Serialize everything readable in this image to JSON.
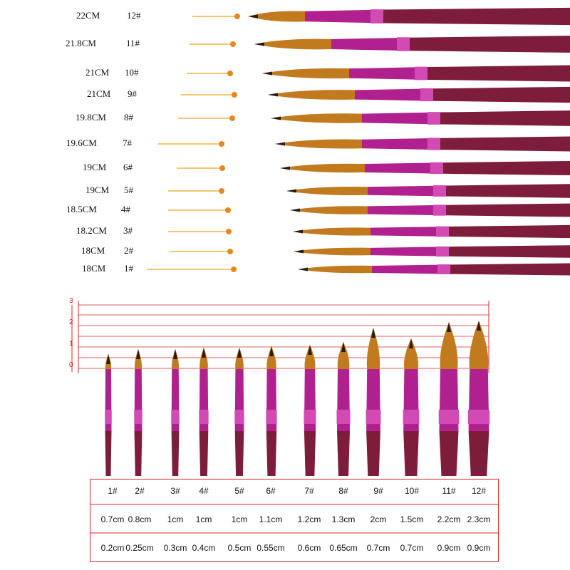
{
  "colors": {
    "leader_line": "#f2b244",
    "dot": "#e8871e",
    "ferrule": "#b0218f",
    "handle": "#7e1c3b",
    "hair": "#c27a1e",
    "hair_tip": "#2b1a10",
    "grid": "#d42a2a"
  },
  "top_rows": [
    {
      "length": "22CM",
      "size": "12#"
    },
    {
      "length": "21.8CM",
      "size": "11#"
    },
    {
      "length": "21CM",
      "size": "10#"
    },
    {
      "length": "21CM",
      "size": "9#"
    },
    {
      "length": "19.8CM",
      "size": "8#"
    },
    {
      "length": "19.6CM",
      "size": "7#"
    },
    {
      "length": "19CM",
      "size": "6#"
    },
    {
      "length": "19CM",
      "size": "5#"
    },
    {
      "length": "18.5CM",
      "size": "4#"
    },
    {
      "length": "18.2CM",
      "size": "3#"
    },
    {
      "length": "18CM",
      "size": "2#"
    },
    {
      "length": "18CM",
      "size": "1#"
    }
  ],
  "ruler_labels": [
    "3",
    "2",
    "1",
    "0"
  ],
  "table": {
    "sizes": [
      "1#",
      "2#",
      "3#",
      "4#",
      "5#",
      "6#",
      "7#",
      "8#",
      "9#",
      "10#",
      "11#",
      "12#"
    ],
    "hair_lengths": [
      "0.7cm",
      "0.8cm",
      "1cm",
      "1cm",
      "1cm",
      "1.1cm",
      "1.2cm",
      "1.3cm",
      "2cm",
      "1.5cm",
      "2.2cm",
      "2.3cm"
    ],
    "hair_widths": [
      "0.2cm",
      "0.25cm",
      "0.3cm",
      "0.4cm",
      "0.5cm",
      "0.55cm",
      "0.6cm",
      "0.65cm",
      "0.7cm",
      "0.7cm",
      "0.9cm",
      "0.9cm"
    ]
  }
}
